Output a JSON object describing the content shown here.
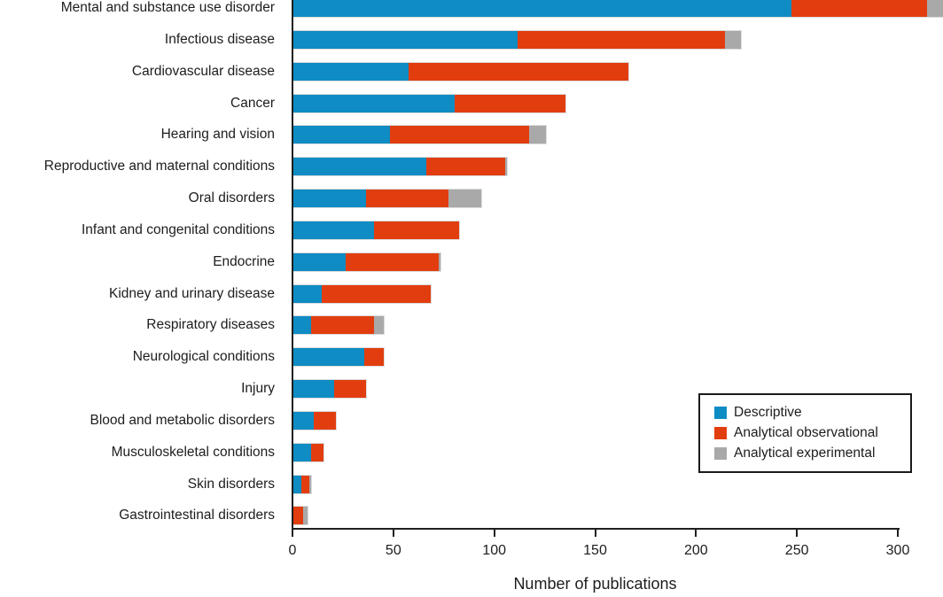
{
  "chart_data": {
    "type": "bar",
    "orientation": "horizontal",
    "stacked": true,
    "title": "",
    "xlabel": "Number of publications",
    "xlim": [
      0,
      300
    ],
    "x_ticks": [
      "0",
      "50",
      "100",
      "150",
      "200",
      "250",
      "300"
    ],
    "x_tick_values": [
      0,
      50,
      100,
      150,
      200,
      250,
      300
    ],
    "grid": false,
    "legend_position": "lower right",
    "note": "Top bar total exceeds the 300 axis maximum and is clipped at the right edge of the image",
    "categories": [
      "Mental and substance use disorder",
      "Infectious disease",
      "Cardiovascular disease",
      "Cancer",
      "Hearing and vision",
      "Reproductive and maternal conditions",
      "Oral disorders",
      "Infant and congenital conditions",
      "Endocrine",
      "Kidney and urinary disease",
      "Respiratory diseases",
      "Neurological conditions",
      "Injury",
      "Blood and metabolic disorders",
      "Musculoskeletal conditions",
      "Skin disorders",
      "Gastrointestinal disorders"
    ],
    "series": [
      {
        "name": "Descriptive",
        "color": "#0e8cc3",
        "values": [
          247,
          111,
          57,
          80,
          48,
          66,
          36,
          40,
          26,
          14,
          9,
          35,
          20,
          10,
          9,
          4,
          0
        ]
      },
      {
        "name": "Analytical observational",
        "color": "#e23d0f",
        "values": [
          67,
          103,
          109,
          55,
          69,
          39,
          41,
          42,
          46,
          54,
          31,
          10,
          16,
          11,
          6,
          4,
          5
        ]
      },
      {
        "name": "Analytical experimental",
        "color": "#a9a9a9",
        "values": [
          9,
          8,
          0,
          0,
          8,
          1,
          16,
          0,
          1,
          0,
          5,
          0,
          0,
          0,
          0,
          1,
          2
        ]
      }
    ]
  }
}
